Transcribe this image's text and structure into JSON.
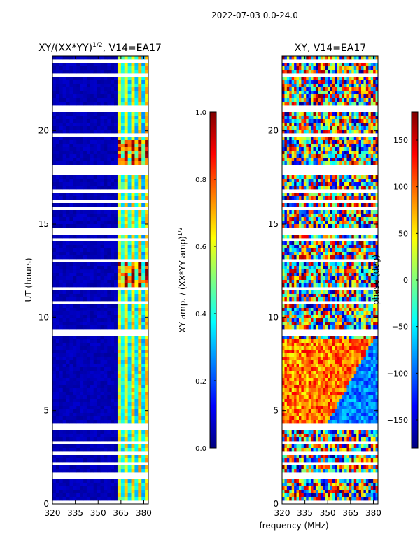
{
  "suptitle": "2022-07-03 0.0-24.0",
  "shared": {
    "xlabel": "frequency (MHz)",
    "ylabel": "UT (hours)"
  },
  "chart_data": [
    {
      "type": "heatmap",
      "title_main": "XY/(XX*YY)",
      "title_sup": "1/2",
      "title_tail": ", V14=EA17",
      "xlim": [
        320,
        383
      ],
      "ylim": [
        0,
        24
      ],
      "xticks": [
        "320",
        "335",
        "350",
        "365",
        "380"
      ],
      "xtick_values": [
        320,
        335,
        350,
        365,
        380
      ],
      "yticks": [
        "0",
        "5",
        "10",
        "15",
        "20"
      ],
      "ytick_values": [
        0,
        5,
        10,
        15,
        20
      ],
      "colorbar": {
        "label_main": "XY amp. / (XX*YY amp)",
        "label_sup": "1/2",
        "range": [
          0.0,
          1.0
        ],
        "ticks": [
          "0.0",
          "0.2",
          "0.4",
          "0.6",
          "0.8",
          "1.0"
        ],
        "tick_values": [
          0.0,
          0.2,
          0.4,
          0.6,
          0.8,
          1.0
        ]
      }
    },
    {
      "type": "heatmap",
      "title_main": "XY, V14=EA17",
      "xlim": [
        320,
        383
      ],
      "ylim": [
        0,
        24
      ],
      "xticks": [
        "320",
        "335",
        "350",
        "365",
        "380"
      ],
      "xtick_values": [
        320,
        335,
        350,
        365,
        380
      ],
      "yticks": [
        "0",
        "5",
        "10",
        "15",
        "20"
      ],
      "ytick_values": [
        0,
        5,
        10,
        15,
        20
      ],
      "colorbar": {
        "label_main": "phase (deg)",
        "range": [
          -180,
          180
        ],
        "ticks": [
          "−150",
          "−100",
          "−50",
          "0",
          "50",
          "100",
          "150"
        ],
        "tick_values": [
          -150,
          -100,
          -50,
          0,
          50,
          100,
          150
        ]
      }
    }
  ],
  "colors": {
    "jet_stops": [
      "#00007f",
      "#0000ff",
      "#007fff",
      "#00ffff",
      "#7fff7f",
      "#ffff00",
      "#ff7f00",
      "#ff0000",
      "#7f0000"
    ],
    "flag_gap": "#ffffff",
    "background_amp": "#00008a"
  },
  "flagged_hours": [
    [
      0.05,
      0.12
    ],
    [
      0.3,
      0.36
    ],
    [
      0.55,
      0.62
    ],
    [
      0.9,
      1.0
    ],
    [
      1.35,
      1.42
    ],
    [
      1.55,
      1.7
    ],
    [
      2.1,
      2.3
    ],
    [
      2.55,
      2.9
    ],
    [
      3.25,
      3.32
    ],
    [
      3.55,
      3.65
    ],
    [
      3.95,
      4.35
    ],
    [
      8.8,
      8.88
    ],
    [
      9.05,
      9.3
    ],
    [
      9.5,
      9.58
    ],
    [
      9.9,
      9.97
    ],
    [
      10.7,
      10.85
    ],
    [
      11.4,
      11.55
    ],
    [
      12.9,
      13.05
    ],
    [
      13.25,
      13.35
    ],
    [
      14.05,
      14.25
    ],
    [
      14.45,
      14.75
    ],
    [
      15.8,
      15.88
    ],
    [
      16.2,
      16.3
    ],
    [
      16.65,
      16.85
    ],
    [
      17.35,
      17.45
    ],
    [
      17.7,
      18.1
    ],
    [
      18.5,
      18.65
    ],
    [
      19.7,
      19.95
    ],
    [
      20.05,
      20.12
    ],
    [
      20.95,
      21.35
    ],
    [
      22.1,
      22.18
    ],
    [
      22.5,
      22.58
    ],
    [
      22.95,
      23.05
    ],
    [
      23.55,
      23.75
    ]
  ]
}
